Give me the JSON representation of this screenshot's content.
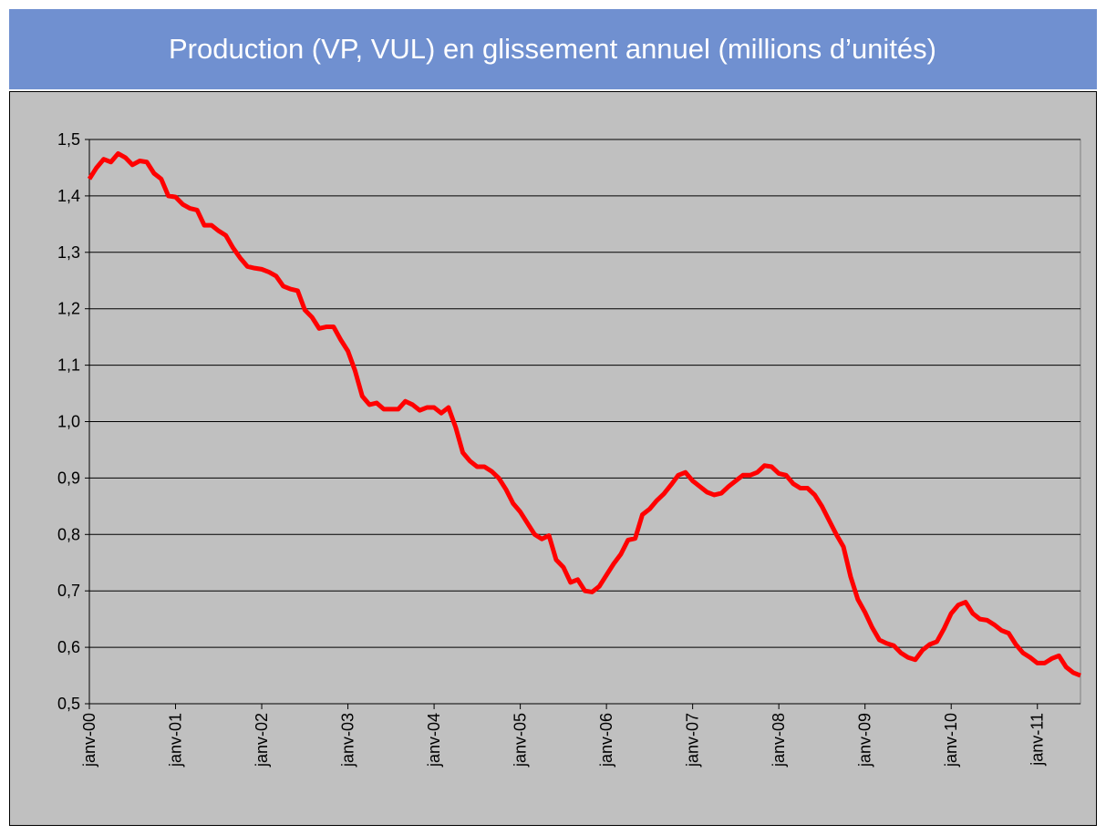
{
  "chart_data": {
    "type": "line",
    "title": "Production  (VP,  VUL) en glissement annuel (millions d’unités)",
    "categories": [
      "janv-00",
      null,
      null,
      null,
      null,
      null,
      null,
      null,
      null,
      null,
      null,
      null,
      "janv-01",
      null,
      null,
      null,
      null,
      null,
      null,
      null,
      null,
      null,
      null,
      null,
      "janv-02",
      null,
      null,
      null,
      null,
      null,
      null,
      null,
      null,
      null,
      null,
      null,
      "janv-03",
      null,
      null,
      null,
      null,
      null,
      null,
      null,
      null,
      null,
      null,
      null,
      "janv-04",
      null,
      null,
      null,
      null,
      null,
      null,
      null,
      null,
      null,
      null,
      null,
      "janv-05",
      null,
      null,
      null,
      null,
      null,
      null,
      null,
      null,
      null,
      null,
      null,
      "janv-06",
      null,
      null,
      null,
      null,
      null,
      null,
      null,
      null,
      null,
      null,
      null,
      "janv-07",
      null,
      null,
      null,
      null,
      null,
      null,
      null,
      null,
      null,
      null,
      null,
      "janv-08",
      null,
      null,
      null,
      null,
      null,
      null,
      null,
      null,
      null,
      null,
      null,
      "janv-09",
      null,
      null,
      null,
      null,
      null,
      null,
      null,
      null,
      null,
      null,
      null,
      "janv-10",
      null,
      null,
      null,
      null,
      null,
      null,
      null,
      null,
      null,
      null,
      null,
      "janv-11",
      null,
      null,
      null,
      null,
      null,
      null
    ],
    "values": [
      1.43,
      1.45,
      1.465,
      1.46,
      1.475,
      1.468,
      1.455,
      1.462,
      1.46,
      1.44,
      1.43,
      1.4,
      1.398,
      1.385,
      1.378,
      1.375,
      1.348,
      1.348,
      1.338,
      1.33,
      1.308,
      1.29,
      1.275,
      1.272,
      1.27,
      1.265,
      1.258,
      1.24,
      1.235,
      1.232,
      1.198,
      1.185,
      1.165,
      1.168,
      1.168,
      1.145,
      1.125,
      1.09,
      1.045,
      1.03,
      1.033,
      1.022,
      1.022,
      1.022,
      1.036,
      1.03,
      1.02,
      1.025,
      1.025,
      1.015,
      1.025,
      0.99,
      0.945,
      0.93,
      0.92,
      0.92,
      0.912,
      0.9,
      0.88,
      0.855,
      0.84,
      0.82,
      0.8,
      0.792,
      0.798,
      0.755,
      0.742,
      0.715,
      0.72,
      0.7,
      0.698,
      0.708,
      0.728,
      0.748,
      0.765,
      0.79,
      0.793,
      0.835,
      0.845,
      0.86,
      0.872,
      0.888,
      0.905,
      0.91,
      0.895,
      0.885,
      0.875,
      0.87,
      0.873,
      0.885,
      0.895,
      0.905,
      0.905,
      0.91,
      0.922,
      0.92,
      0.908,
      0.905,
      0.89,
      0.882,
      0.882,
      0.87,
      0.85,
      0.825,
      0.8,
      0.778,
      0.725,
      0.685,
      0.662,
      0.635,
      0.613,
      0.607,
      0.603,
      0.59,
      0.582,
      0.578,
      0.595,
      0.605,
      0.61,
      0.633,
      0.66,
      0.675,
      0.68,
      0.66,
      0.65,
      0.648,
      0.64,
      0.63,
      0.625,
      0.605,
      0.59,
      0.582,
      0.572,
      0.572,
      0.58,
      0.585,
      0.565,
      0.555,
      0.55
    ],
    "color": "#ff0000",
    "ylim": [
      0.5,
      1.5
    ],
    "yticks": [
      {
        "value": 0.5,
        "label": "0,5"
      },
      {
        "value": 0.6,
        "label": "0,6"
      },
      {
        "value": 0.7,
        "label": "0,7"
      },
      {
        "value": 0.8,
        "label": "0,8"
      },
      {
        "value": 0.9,
        "label": "0,9"
      },
      {
        "value": 1.0,
        "label": "1,0"
      },
      {
        "value": 1.1,
        "label": "1,1"
      },
      {
        "value": 1.2,
        "label": "1,2"
      },
      {
        "value": 1.3,
        "label": "1,3"
      },
      {
        "value": 1.4,
        "label": "1,4"
      },
      {
        "value": 1.5,
        "label": "1,5"
      }
    ],
    "grid": true
  }
}
